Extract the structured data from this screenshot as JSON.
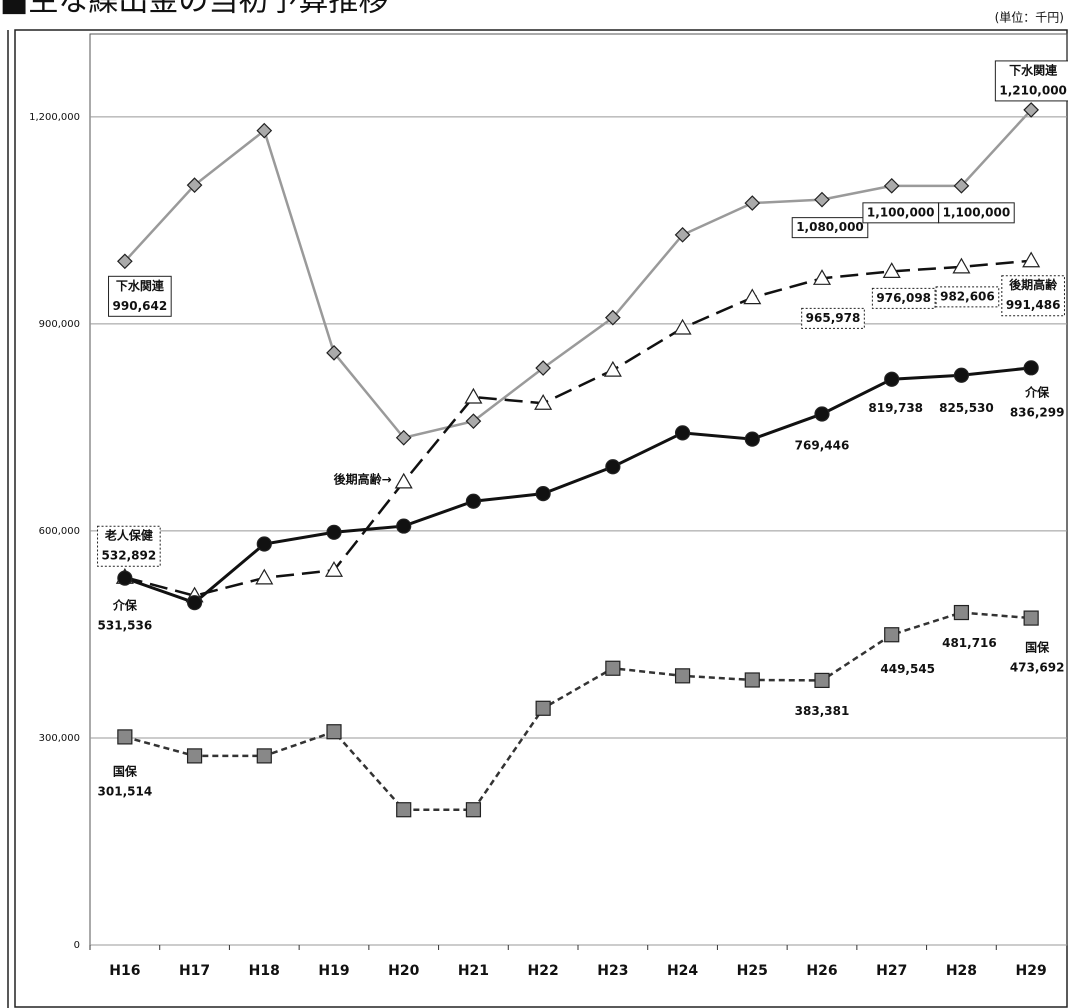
{
  "chart_data": {
    "type": "line",
    "title": "■主な繰出金の当初予算推移",
    "unit_label": "(単位：千円)",
    "categories": [
      "H16",
      "H17",
      "H18",
      "H19",
      "H20",
      "H21",
      "H22",
      "H23",
      "H24",
      "H25",
      "H26",
      "H27",
      "H28",
      "H29"
    ],
    "ylim": [
      0,
      1320000
    ],
    "yticks": [
      0,
      {
        "value": 300000,
        "label": "300,000"
      },
      {
        "value": 600000,
        "label": "600,000"
      },
      {
        "value": 900000,
        "label": "900,000"
      },
      {
        "value": 1200000,
        "label": "1,200,000"
      }
    ],
    "grid": true,
    "annotations": [
      "後期高齢→",
      "老人保健"
    ],
    "series": [
      {
        "name": "下水関連",
        "color": "#9a9a9a",
        "marker": "diamond",
        "values": [
          990642,
          1101000,
          1180000,
          858000,
          735000,
          759000,
          836000,
          909000,
          1029000,
          1075000,
          1080000,
          1100000,
          1100000,
          1210000
        ],
        "value_labels": [
          "990,642",
          null,
          null,
          null,
          null,
          null,
          null,
          null,
          null,
          null,
          "1,080,000",
          "1,100,000",
          "1,100,000",
          "1,210,000"
        ]
      },
      {
        "name": "後期高齢",
        "color": "#111111",
        "marker": "triangle",
        "values": [
          532892,
          506000,
          532000,
          543000,
          671000,
          794000,
          785000,
          833000,
          894000,
          938000,
          965978,
          976098,
          982606,
          991486
        ],
        "value_labels": [
          "532,892",
          null,
          null,
          null,
          null,
          null,
          null,
          null,
          null,
          null,
          "965,978",
          "976,098",
          "982,606",
          "991,486"
        ]
      },
      {
        "name": "介保",
        "color": "#111111",
        "marker": "circle",
        "values": [
          531536,
          496000,
          581000,
          598000,
          607000,
          643000,
          654000,
          693000,
          742000,
          733000,
          769446,
          819738,
          825530,
          836299
        ],
        "value_labels": [
          "531,536",
          null,
          null,
          null,
          null,
          null,
          null,
          null,
          null,
          null,
          "769,446",
          "819,738",
          "825,530",
          "836,299"
        ]
      },
      {
        "name": "国保",
        "color": "#333333",
        "marker": "square",
        "values": [
          301514,
          274000,
          274000,
          309000,
          196000,
          196000,
          343000,
          401000,
          390000,
          384000,
          383381,
          449545,
          481716,
          473692
        ],
        "value_labels": [
          "301,514",
          null,
          null,
          null,
          null,
          null,
          null,
          null,
          null,
          null,
          "383,381",
          "449,545",
          "481,716",
          "473,692"
        ]
      }
    ]
  }
}
